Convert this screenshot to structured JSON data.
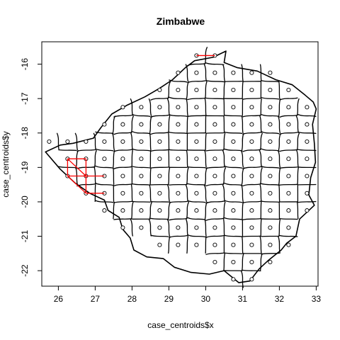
{
  "chart_data": {
    "type": "scatter",
    "title": "Zimbabwe",
    "xlabel": "case_centroids$x",
    "ylabel": "case_centroids$y",
    "xlim": [
      25.55,
      33.05
    ],
    "ylim": [
      -22.45,
      -15.35
    ],
    "x_ticks": [
      26,
      27,
      28,
      29,
      30,
      31,
      32,
      33
    ],
    "y_ticks": [
      -22,
      -21,
      -20,
      -19,
      -18,
      -17,
      -16
    ],
    "x_tick_labels": [
      "26",
      "27",
      "28",
      "29",
      "30",
      "31",
      "32",
      "33"
    ],
    "y_tick_labels": [
      "-22",
      "-21",
      "-20",
      "-19",
      "-18",
      "-17",
      "-16"
    ],
    "grid": false,
    "colors": {
      "points": "#000000",
      "boundaries": "#000000",
      "highlight": "#ff0000"
    },
    "points": [
      [
        29.75,
        -15.75
      ],
      [
        30.25,
        -15.75
      ],
      [
        29.25,
        -16.25
      ],
      [
        29.75,
        -16.25
      ],
      [
        30.25,
        -16.25
      ],
      [
        30.75,
        -16.25
      ],
      [
        31.25,
        -16.25
      ],
      [
        31.75,
        -16.25
      ],
      [
        28.75,
        -16.75
      ],
      [
        29.25,
        -16.75
      ],
      [
        29.75,
        -16.75
      ],
      [
        30.25,
        -16.75
      ],
      [
        30.75,
        -16.75
      ],
      [
        31.25,
        -16.75
      ],
      [
        31.75,
        -16.75
      ],
      [
        32.25,
        -16.75
      ],
      [
        27.75,
        -17.25
      ],
      [
        28.25,
        -17.25
      ],
      [
        28.75,
        -17.25
      ],
      [
        29.25,
        -17.25
      ],
      [
        29.75,
        -17.25
      ],
      [
        30.25,
        -17.25
      ],
      [
        30.75,
        -17.25
      ],
      [
        31.25,
        -17.25
      ],
      [
        31.75,
        -17.25
      ],
      [
        32.25,
        -17.25
      ],
      [
        32.75,
        -17.25
      ],
      [
        27.25,
        -17.75
      ],
      [
        27.75,
        -17.75
      ],
      [
        28.25,
        -17.75
      ],
      [
        28.75,
        -17.75
      ],
      [
        29.25,
        -17.75
      ],
      [
        29.75,
        -17.75
      ],
      [
        30.25,
        -17.75
      ],
      [
        30.75,
        -17.75
      ],
      [
        31.25,
        -17.75
      ],
      [
        31.75,
        -17.75
      ],
      [
        32.25,
        -17.75
      ],
      [
        32.75,
        -17.75
      ],
      [
        25.75,
        -18.25
      ],
      [
        26.25,
        -18.25
      ],
      [
        26.75,
        -18.25
      ],
      [
        27.25,
        -18.25
      ],
      [
        27.75,
        -18.25
      ],
      [
        28.25,
        -18.25
      ],
      [
        28.75,
        -18.25
      ],
      [
        29.25,
        -18.25
      ],
      [
        29.75,
        -18.25
      ],
      [
        30.25,
        -18.25
      ],
      [
        30.75,
        -18.25
      ],
      [
        31.25,
        -18.25
      ],
      [
        31.75,
        -18.25
      ],
      [
        32.25,
        -18.25
      ],
      [
        32.75,
        -18.25
      ],
      [
        26.25,
        -18.75
      ],
      [
        26.75,
        -18.75
      ],
      [
        27.25,
        -18.75
      ],
      [
        27.75,
        -18.75
      ],
      [
        28.25,
        -18.75
      ],
      [
        28.75,
        -18.75
      ],
      [
        29.25,
        -18.75
      ],
      [
        29.75,
        -18.75
      ],
      [
        30.25,
        -18.75
      ],
      [
        30.75,
        -18.75
      ],
      [
        31.25,
        -18.75
      ],
      [
        31.75,
        -18.75
      ],
      [
        32.25,
        -18.75
      ],
      [
        32.75,
        -18.75
      ],
      [
        26.25,
        -19.25
      ],
      [
        26.75,
        -19.25
      ],
      [
        27.25,
        -19.25
      ],
      [
        27.75,
        -19.25
      ],
      [
        28.25,
        -19.25
      ],
      [
        28.75,
        -19.25
      ],
      [
        29.25,
        -19.25
      ],
      [
        29.75,
        -19.25
      ],
      [
        30.25,
        -19.25
      ],
      [
        30.75,
        -19.25
      ],
      [
        31.25,
        -19.25
      ],
      [
        31.75,
        -19.25
      ],
      [
        32.25,
        -19.25
      ],
      [
        32.75,
        -19.25
      ],
      [
        26.75,
        -19.75
      ],
      [
        27.25,
        -19.75
      ],
      [
        27.75,
        -19.75
      ],
      [
        28.25,
        -19.75
      ],
      [
        28.75,
        -19.75
      ],
      [
        29.25,
        -19.75
      ],
      [
        29.75,
        -19.75
      ],
      [
        30.25,
        -19.75
      ],
      [
        30.75,
        -19.75
      ],
      [
        31.25,
        -19.75
      ],
      [
        31.75,
        -19.75
      ],
      [
        32.25,
        -19.75
      ],
      [
        32.75,
        -19.75
      ],
      [
        27.25,
        -20.25
      ],
      [
        27.75,
        -20.25
      ],
      [
        28.25,
        -20.25
      ],
      [
        28.75,
        -20.25
      ],
      [
        29.25,
        -20.25
      ],
      [
        29.75,
        -20.25
      ],
      [
        30.25,
        -20.25
      ],
      [
        30.75,
        -20.25
      ],
      [
        31.25,
        -20.25
      ],
      [
        31.75,
        -20.25
      ],
      [
        32.25,
        -20.25
      ],
      [
        32.75,
        -20.25
      ],
      [
        27.75,
        -20.75
      ],
      [
        28.25,
        -20.75
      ],
      [
        28.75,
        -20.75
      ],
      [
        29.25,
        -20.75
      ],
      [
        29.75,
        -20.75
      ],
      [
        30.25,
        -20.75
      ],
      [
        30.75,
        -20.75
      ],
      [
        31.25,
        -20.75
      ],
      [
        31.75,
        -20.75
      ],
      [
        32.25,
        -20.75
      ],
      [
        28.75,
        -21.25
      ],
      [
        29.25,
        -21.25
      ],
      [
        29.75,
        -21.25
      ],
      [
        30.25,
        -21.25
      ],
      [
        30.75,
        -21.25
      ],
      [
        31.25,
        -21.25
      ],
      [
        31.75,
        -21.25
      ],
      [
        32.25,
        -21.25
      ],
      [
        30.25,
        -21.75
      ],
      [
        30.75,
        -21.75
      ],
      [
        31.25,
        -21.75
      ],
      [
        31.75,
        -21.75
      ],
      [
        30.75,
        -22.25
      ],
      [
        31.25,
        -22.25
      ]
    ],
    "highlight_edges": [
      [
        [
          29.75,
          -15.75
        ],
        [
          30.25,
          -15.75
        ]
      ],
      [
        [
          26.25,
          -18.75
        ],
        [
          26.75,
          -18.75
        ]
      ],
      [
        [
          26.25,
          -18.75
        ],
        [
          26.25,
          -19.25
        ]
      ],
      [
        [
          26.25,
          -18.75
        ],
        [
          26.75,
          -19.25
        ]
      ],
      [
        [
          26.75,
          -18.75
        ],
        [
          26.75,
          -19.25
        ]
      ],
      [
        [
          26.25,
          -19.25
        ],
        [
          26.75,
          -19.25
        ]
      ],
      [
        [
          26.75,
          -19.25
        ],
        [
          27.25,
          -19.25
        ]
      ],
      [
        [
          26.25,
          -19.25
        ],
        [
          26.75,
          -19.75
        ]
      ],
      [
        [
          26.75,
          -19.25
        ],
        [
          26.75,
          -19.75
        ]
      ],
      [
        [
          26.75,
          -19.75
        ],
        [
          27.25,
          -19.75
        ]
      ]
    ],
    "boundary_outline": [
      [
        29.7,
        -15.9
      ],
      [
        30.2,
        -15.8
      ],
      [
        30.55,
        -15.62
      ],
      [
        30.5,
        -15.95
      ],
      [
        30.85,
        -16.1
      ],
      [
        31.4,
        -16.2
      ],
      [
        31.9,
        -16.45
      ],
      [
        32.35,
        -16.6
      ],
      [
        32.7,
        -16.9
      ],
      [
        32.92,
        -17.1
      ],
      [
        33.0,
        -17.3
      ],
      [
        32.9,
        -17.75
      ],
      [
        32.95,
        -18.3
      ],
      [
        32.98,
        -18.85
      ],
      [
        32.85,
        -19.3
      ],
      [
        32.8,
        -19.8
      ],
      [
        32.95,
        -20.1
      ],
      [
        32.55,
        -20.5
      ],
      [
        32.45,
        -21.0
      ],
      [
        32.2,
        -21.2
      ],
      [
        32.05,
        -21.4
      ],
      [
        31.7,
        -21.7
      ],
      [
        31.45,
        -21.95
      ],
      [
        31.2,
        -22.3
      ],
      [
        30.9,
        -22.35
      ],
      [
        30.5,
        -22.0
      ],
      [
        30.1,
        -22.1
      ],
      [
        29.6,
        -22.05
      ],
      [
        29.15,
        -21.9
      ],
      [
        28.85,
        -21.65
      ],
      [
        28.4,
        -21.6
      ],
      [
        28.05,
        -21.4
      ],
      [
        27.95,
        -21.05
      ],
      [
        27.75,
        -20.8
      ],
      [
        27.65,
        -20.45
      ],
      [
        27.35,
        -20.25
      ],
      [
        27.25,
        -19.95
      ],
      [
        26.85,
        -19.75
      ],
      [
        26.45,
        -19.45
      ],
      [
        26.05,
        -19.05
      ],
      [
        25.65,
        -18.55
      ],
      [
        26.05,
        -18.35
      ],
      [
        26.4,
        -18.3
      ],
      [
        26.95,
        -18.15
      ],
      [
        27.15,
        -17.85
      ],
      [
        27.45,
        -17.45
      ],
      [
        27.85,
        -17.2
      ],
      [
        28.35,
        -16.95
      ],
      [
        28.75,
        -16.7
      ],
      [
        29.1,
        -16.45
      ],
      [
        29.45,
        -16.1
      ],
      [
        29.7,
        -15.9
      ]
    ]
  }
}
